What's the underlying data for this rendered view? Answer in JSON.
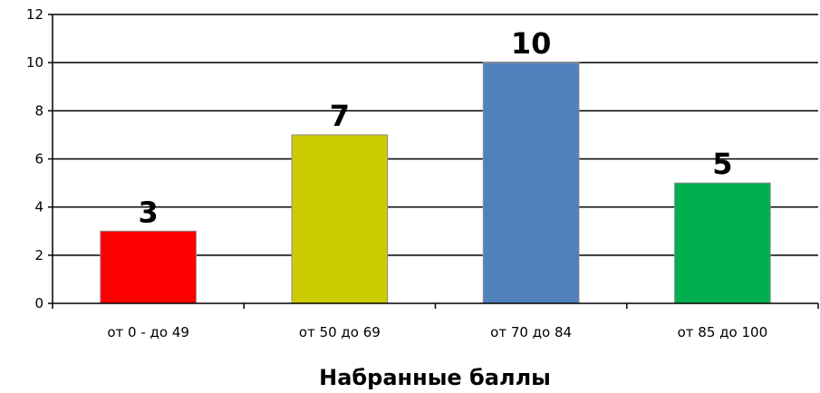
{
  "chart_data": {
    "type": "bar",
    "categories": [
      "от 0 - до 49",
      "от 50 до 69",
      "от 70 до 84",
      "от 85 до 100"
    ],
    "values": [
      3,
      7,
      10,
      5
    ],
    "colors": [
      "#ff0000",
      "#cccc00",
      "#4f81bd",
      "#00b050"
    ],
    "data_labels": [
      "3",
      "7",
      "10",
      "5"
    ],
    "xlabel": "Набранные баллы",
    "ylabel": "",
    "ylim": [
      0,
      12
    ],
    "yticks": [
      0,
      2,
      4,
      6,
      8,
      10,
      12
    ],
    "grid": true,
    "legend": "none"
  }
}
